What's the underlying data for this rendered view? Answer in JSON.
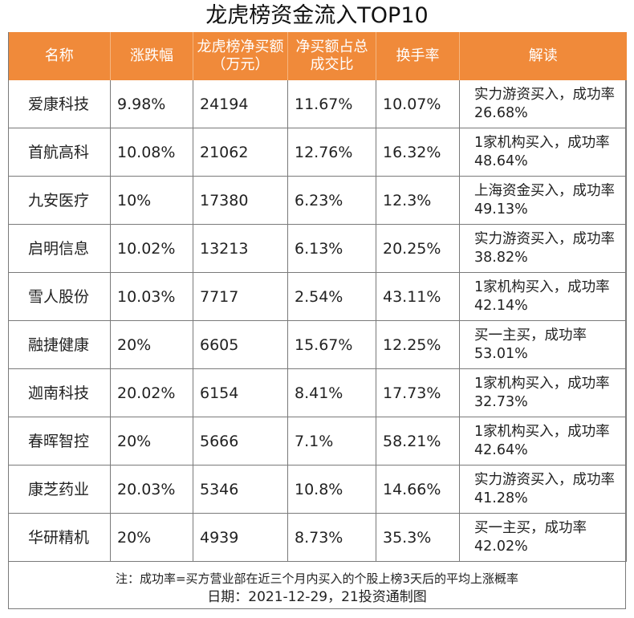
{
  "title": "龙虎榜资金流入TOP10",
  "headers": [
    "名称",
    "涨跌幅",
    "龙虎榜净买额（万元）",
    "净买额占总成交比",
    "换手率",
    "解读"
  ],
  "rows": [
    {
      "name": "爱康科技",
      "change": "9.98%",
      "net_buy": "24194",
      "ratio": "11.67%",
      "turnover": "10.07%",
      "interpret": "实力游资买入，成功率26.68%"
    },
    {
      "name": "首航高科",
      "change": "10.08%",
      "net_buy": "21062",
      "ratio": "12.76%",
      "turnover": "16.32%",
      "interpret": "1家机构买入，成功率48.64%"
    },
    {
      "name": "九安医疗",
      "change": "10%",
      "net_buy": "17380",
      "ratio": "6.23%",
      "turnover": "12.3%",
      "interpret": "上海资金买入，成功率49.13%"
    },
    {
      "name": "启明信息",
      "change": "10.02%",
      "net_buy": "13213",
      "ratio": "6.13%",
      "turnover": "20.25%",
      "interpret": "实力游资买入，成功率38.82%"
    },
    {
      "name": "雪人股份",
      "change": "10.03%",
      "net_buy": "7717",
      "ratio": "2.54%",
      "turnover": "43.11%",
      "interpret": "1家机构买入，成功率42.14%"
    },
    {
      "name": "融捷健康",
      "change": "20%",
      "net_buy": "6605",
      "ratio": "15.67%",
      "turnover": "12.25%",
      "interpret": "买一主买，成功率53.01%"
    },
    {
      "name": "迦南科技",
      "change": "20.02%",
      "net_buy": "6154",
      "ratio": "8.41%",
      "turnover": "17.73%",
      "interpret": "1家机构买入，成功率32.73%"
    },
    {
      "name": "春晖智控",
      "change": "20%",
      "net_buy": "5666",
      "ratio": "7.1%",
      "turnover": "58.21%",
      "interpret": "1家机构买入，成功率42.64%"
    },
    {
      "name": "康芝药业",
      "change": "20.03%",
      "net_buy": "5346",
      "ratio": "10.8%",
      "turnover": "14.66%",
      "interpret": "实力游资买入，成功率41.28%"
    },
    {
      "name": "华研精机",
      "change": "20%",
      "net_buy": "4939",
      "ratio": "8.73%",
      "turnover": "35.3%",
      "interpret": "买一主买，成功率42.02%"
    }
  ],
  "footnote": "注：成功率=买方营业部在近三个月内买入的个股上榜3天后的平均上涨概率",
  "date_credit": "日期：2021-12-29，21投资通制图",
  "colors": {
    "header_bg": "#f08a3a",
    "header_text": "#ffffff",
    "border": "#7a7a7a"
  }
}
